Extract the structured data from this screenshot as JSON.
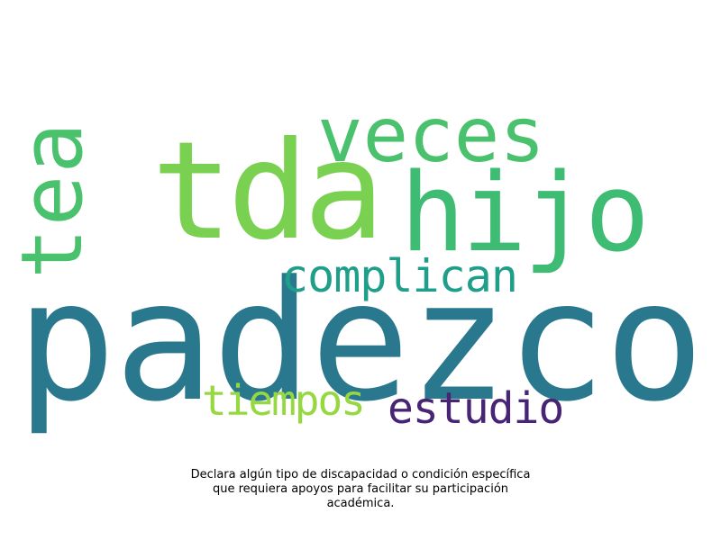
{
  "wordcloud": {
    "words": {
      "padezco": {
        "text": "padezco",
        "color": "#2a788e"
      },
      "tda": {
        "text": "tda",
        "color": "#7ad151"
      },
      "veces": {
        "text": "veces",
        "color": "#4ac16d"
      },
      "hijo": {
        "text": "hijo",
        "color": "#3fbc73"
      },
      "tea": {
        "text": "tea",
        "color": "#4ac16d"
      },
      "complican": {
        "text": "complican",
        "color": "#1f9e89"
      },
      "tiempos": {
        "text": "tiempos",
        "color": "#95d840"
      },
      "estudio": {
        "text": "estudio",
        "color": "#482475"
      }
    }
  },
  "caption": {
    "line1": "Declara algún tipo de discapacidad o condición específica",
    "line2": "que requiera apoyos para facilitar su participación",
    "line3": "académica."
  }
}
